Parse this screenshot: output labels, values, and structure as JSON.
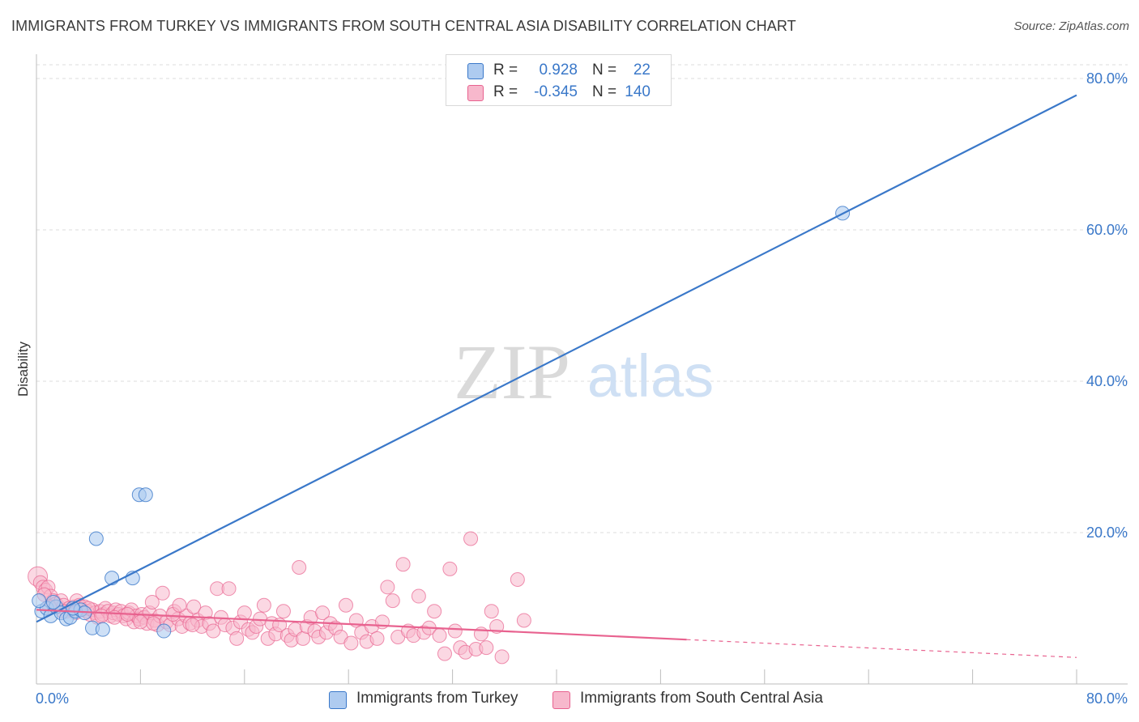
{
  "title": "IMMIGRANTS FROM TURKEY VS IMMIGRANTS FROM SOUTH CENTRAL ASIA DISABILITY CORRELATION CHART",
  "source": "Source: ZipAtlas.com",
  "watermark": {
    "zip": "ZIP",
    "atlas": "atlas"
  },
  "colors": {
    "blue": "#3a78c9",
    "blue_fill": "#aecbf0",
    "pink": "#e8628f",
    "pink_fill": "#f7b8cc",
    "grid": "#dcdcdc",
    "axis_text": "#3a78c9"
  },
  "legend": {
    "rows": [
      {
        "r_label": "R =",
        "r_value": "0.928",
        "n_label": "N =",
        "n_value": "22"
      },
      {
        "r_label": "R =",
        "r_value": "-0.345",
        "n_label": "N =",
        "n_value": "140"
      }
    ]
  },
  "bottom_legend": {
    "series1": "Immigrants from Turkey",
    "series2": "Immigrants from South Central Asia"
  },
  "chart_data": {
    "type": "scatter",
    "title": "IMMIGRANTS FROM TURKEY VS IMMIGRANTS FROM SOUTH CENTRAL ASIA DISABILITY CORRELATION CHART",
    "xlabel": "",
    "ylabel": "Disability",
    "xlim": [
      0,
      80
    ],
    "ylim": [
      0,
      80
    ],
    "x_tick_labels": [
      "0.0%",
      "80.0%"
    ],
    "y_tick_labels": [
      "20.0%",
      "40.0%",
      "60.0%",
      "80.0%"
    ],
    "y_ticks": [
      20,
      40,
      60,
      80
    ],
    "x_minor_ticks": [
      0,
      8,
      16,
      24,
      32,
      40,
      48,
      56,
      64,
      72,
      80
    ],
    "series": [
      {
        "name": "Immigrants from Turkey",
        "color": "#3a78c9",
        "trend": {
          "x": [
            0,
            80
          ],
          "y": [
            8.2,
            77.8
          ],
          "dashed_from": null
        },
        "points": [
          [
            0.4,
            9.6
          ],
          [
            0.8,
            10.0
          ],
          [
            1.1,
            9.0
          ],
          [
            1.5,
            10.2
          ],
          [
            1.9,
            9.4
          ],
          [
            2.3,
            8.6
          ],
          [
            2.6,
            8.8
          ],
          [
            3.0,
            9.6
          ],
          [
            3.4,
            9.8
          ],
          [
            3.7,
            9.4
          ],
          [
            4.3,
            7.4
          ],
          [
            4.6,
            19.2
          ],
          [
            5.1,
            7.2
          ],
          [
            5.8,
            14.0
          ],
          [
            7.4,
            14.0
          ],
          [
            7.9,
            25.0
          ],
          [
            8.4,
            25.0
          ],
          [
            9.8,
            7.0
          ],
          [
            62.0,
            62.2
          ],
          [
            1.3,
            10.8
          ],
          [
            2.8,
            10.0
          ],
          [
            0.2,
            11.0
          ]
        ]
      },
      {
        "name": "Immigrants from South Central Asia",
        "color": "#e8628f",
        "trend": {
          "x": [
            0,
            80
          ],
          "y": [
            9.8,
            3.5
          ],
          "dashed_from": 50
        },
        "points": [
          [
            0.1,
            14.2
          ],
          [
            0.3,
            13.4
          ],
          [
            0.5,
            12.8
          ],
          [
            0.7,
            12.4
          ],
          [
            0.9,
            12.8
          ],
          [
            1.1,
            11.6
          ],
          [
            1.3,
            11.0
          ],
          [
            1.5,
            10.6
          ],
          [
            1.7,
            10.2
          ],
          [
            1.9,
            11.0
          ],
          [
            2.1,
            10.4
          ],
          [
            2.3,
            9.6
          ],
          [
            2.5,
            10.0
          ],
          [
            2.7,
            9.8
          ],
          [
            2.9,
            10.2
          ],
          [
            3.1,
            11.0
          ],
          [
            3.3,
            10.4
          ],
          [
            3.5,
            9.8
          ],
          [
            3.7,
            10.2
          ],
          [
            3.9,
            9.6
          ],
          [
            4.1,
            9.2
          ],
          [
            4.3,
            9.8
          ],
          [
            4.5,
            9.4
          ],
          [
            4.7,
            8.8
          ],
          [
            4.9,
            9.6
          ],
          [
            5.1,
            9.2
          ],
          [
            5.3,
            10.0
          ],
          [
            5.5,
            9.6
          ],
          [
            5.7,
            9.0
          ],
          [
            5.9,
            9.4
          ],
          [
            6.1,
            9.8
          ],
          [
            6.3,
            9.2
          ],
          [
            6.5,
            9.6
          ],
          [
            6.7,
            9.0
          ],
          [
            6.9,
            8.6
          ],
          [
            7.1,
            9.4
          ],
          [
            7.3,
            9.8
          ],
          [
            7.5,
            8.2
          ],
          [
            7.7,
            9.0
          ],
          [
            7.9,
            8.6
          ],
          [
            8.1,
            9.2
          ],
          [
            8.3,
            8.8
          ],
          [
            8.5,
            8.0
          ],
          [
            8.7,
            9.4
          ],
          [
            8.9,
            10.8
          ],
          [
            9.1,
            8.4
          ],
          [
            9.3,
            7.8
          ],
          [
            9.5,
            9.0
          ],
          [
            9.7,
            12.0
          ],
          [
            10.0,
            8.2
          ],
          [
            10.3,
            7.8
          ],
          [
            10.6,
            9.6
          ],
          [
            10.9,
            8.6
          ],
          [
            11.2,
            7.6
          ],
          [
            11.5,
            9.0
          ],
          [
            11.8,
            8.0
          ],
          [
            12.1,
            10.2
          ],
          [
            12.4,
            8.4
          ],
          [
            12.7,
            7.6
          ],
          [
            13.0,
            9.4
          ],
          [
            13.3,
            8.0
          ],
          [
            13.6,
            7.0
          ],
          [
            13.9,
            12.6
          ],
          [
            14.2,
            8.8
          ],
          [
            14.5,
            7.8
          ],
          [
            14.8,
            12.6
          ],
          [
            15.1,
            7.4
          ],
          [
            15.4,
            6.0
          ],
          [
            15.7,
            8.2
          ],
          [
            16.0,
            9.4
          ],
          [
            16.3,
            7.2
          ],
          [
            16.6,
            6.8
          ],
          [
            16.9,
            7.6
          ],
          [
            17.2,
            8.6
          ],
          [
            17.5,
            10.4
          ],
          [
            17.8,
            6.0
          ],
          [
            18.1,
            8.0
          ],
          [
            18.4,
            6.6
          ],
          [
            18.7,
            7.8
          ],
          [
            19.0,
            9.6
          ],
          [
            19.3,
            6.4
          ],
          [
            19.6,
            5.8
          ],
          [
            19.9,
            7.2
          ],
          [
            20.2,
            15.4
          ],
          [
            20.5,
            6.0
          ],
          [
            20.8,
            7.6
          ],
          [
            21.1,
            8.8
          ],
          [
            21.4,
            7.0
          ],
          [
            21.7,
            6.2
          ],
          [
            22.0,
            9.4
          ],
          [
            22.3,
            6.8
          ],
          [
            22.6,
            8.0
          ],
          [
            23.0,
            7.4
          ],
          [
            23.4,
            6.2
          ],
          [
            23.8,
            10.4
          ],
          [
            24.2,
            5.4
          ],
          [
            24.6,
            8.4
          ],
          [
            25.0,
            6.8
          ],
          [
            25.4,
            5.6
          ],
          [
            25.8,
            7.6
          ],
          [
            26.2,
            6.0
          ],
          [
            26.6,
            8.2
          ],
          [
            27.0,
            12.8
          ],
          [
            27.4,
            11.0
          ],
          [
            27.8,
            6.2
          ],
          [
            28.2,
            15.8
          ],
          [
            28.6,
            7.0
          ],
          [
            29.0,
            6.4
          ],
          [
            29.4,
            11.6
          ],
          [
            29.8,
            6.8
          ],
          [
            30.2,
            7.4
          ],
          [
            30.6,
            9.6
          ],
          [
            31.0,
            6.4
          ],
          [
            31.4,
            4.0
          ],
          [
            31.8,
            15.2
          ],
          [
            32.2,
            7.0
          ],
          [
            32.6,
            4.8
          ],
          [
            33.0,
            4.2
          ],
          [
            33.4,
            19.2
          ],
          [
            33.8,
            4.6
          ],
          [
            34.2,
            6.6
          ],
          [
            34.6,
            4.8
          ],
          [
            35.0,
            9.6
          ],
          [
            35.4,
            7.6
          ],
          [
            35.8,
            3.6
          ],
          [
            37.0,
            13.8
          ],
          [
            37.5,
            8.4
          ],
          [
            0.6,
            11.8
          ],
          [
            1.0,
            10.2
          ],
          [
            2.0,
            9.6
          ],
          [
            3.0,
            9.4
          ],
          [
            4.0,
            10.0
          ],
          [
            5.0,
            9.0
          ],
          [
            6.0,
            8.8
          ],
          [
            7.0,
            9.2
          ],
          [
            8.0,
            8.2
          ],
          [
            9.0,
            8.0
          ],
          [
            10.5,
            9.2
          ],
          [
            11.0,
            10.4
          ],
          [
            12.0,
            7.8
          ]
        ]
      }
    ]
  }
}
